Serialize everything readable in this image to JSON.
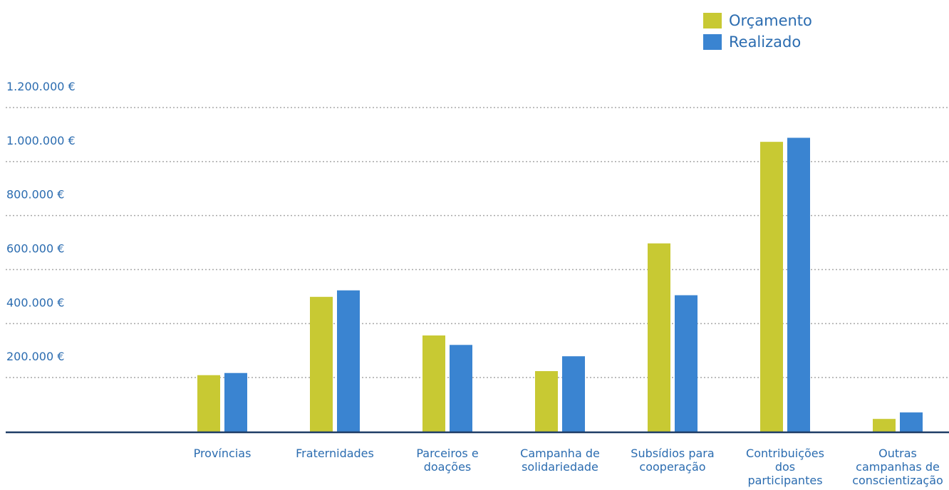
{
  "chart_data": {
    "type": "bar",
    "categories": [
      [
        "Províncias"
      ],
      [
        "Fraternidades"
      ],
      [
        "Parceiros e",
        "doações"
      ],
      [
        "Campanha de",
        "solidariedade"
      ],
      [
        "Subsídios para",
        "cooperação"
      ],
      [
        "Contribuições",
        "dos",
        "participantes"
      ],
      [
        "Outras",
        "campanhas de",
        "conscientização"
      ]
    ],
    "series": [
      {
        "name": "Orçamento",
        "color": "#c8c933",
        "values": [
          209000,
          499000,
          356000,
          224000,
          697000,
          1073000,
          47000
        ]
      },
      {
        "name": "Realizado",
        "color": "#3a84d1",
        "values": [
          217000,
          523000,
          321000,
          279000,
          505000,
          1088000,
          71000
        ]
      }
    ],
    "yticks": [
      {
        "value": 200000,
        "label": "200.000 €"
      },
      {
        "value": 400000,
        "label": "400.000 €"
      },
      {
        "value": 600000,
        "label": "600.000 €"
      },
      {
        "value": 800000,
        "label": "800.000 €"
      },
      {
        "value": 1000000,
        "label": "1.000.000 €"
      },
      {
        "value": 1200000,
        "label": "1.200.000 €"
      }
    ],
    "ylim": [
      0,
      1200000
    ],
    "grid": true,
    "legend_position": "top-right",
    "title": "",
    "xlabel": "",
    "ylabel": ""
  }
}
